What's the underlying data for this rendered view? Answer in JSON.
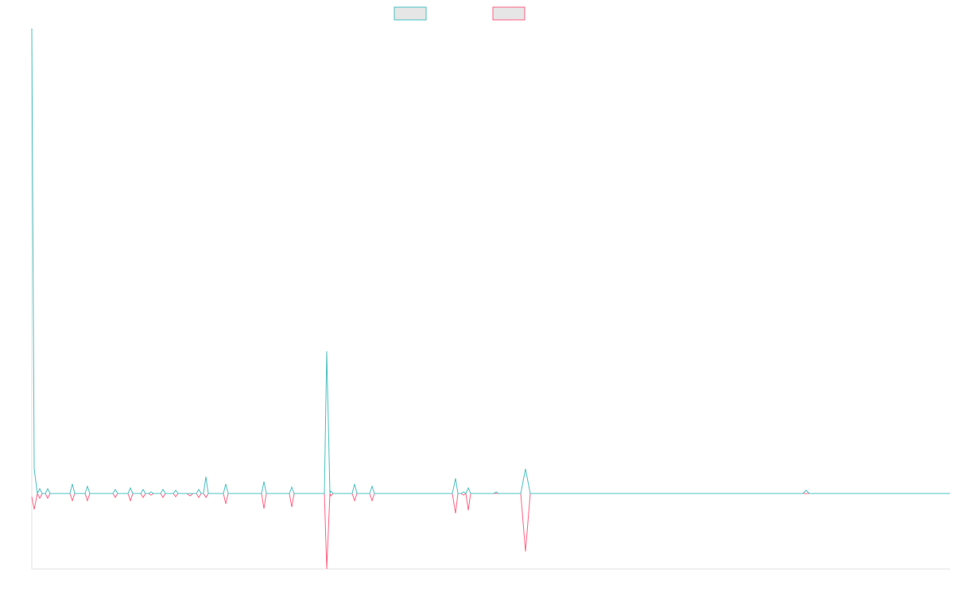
{
  "chart_data": {
    "type": "line",
    "x": [
      0,
      3,
      7,
      10,
      13,
      17,
      20,
      23,
      48,
      51,
      54,
      67,
      70,
      73,
      102,
      105,
      108,
      121,
      124,
      127,
      137,
      140,
      143,
      147,
      150,
      153,
      162,
      165,
      168,
      178,
      181,
      184,
      195,
      199,
      203,
      207,
      210,
      213,
      216,
      219,
      222,
      241,
      244,
      247,
      289,
      292,
      295,
      324,
      327,
      330,
      368,
      371,
      375,
      376,
      379,
      403,
      406,
      409,
      425,
      428,
      431,
      529,
      533,
      536,
      540,
      543,
      546,
      549,
      552,
      581,
      584,
      587,
      615,
      621,
      627,
      970,
      974,
      978,
      1155
    ],
    "xlim": [
      0,
      1155
    ],
    "ylim": [
      -95,
      586
    ],
    "series": [
      {
        "color": "#4bc0c0",
        "values": [
          585,
          31,
          0,
          6,
          0,
          0,
          6,
          0,
          0,
          12,
          0,
          0,
          9,
          0,
          0,
          5,
          0,
          0,
          7,
          0,
          0,
          5,
          0,
          0,
          2,
          0,
          0,
          5,
          0,
          0,
          4,
          0,
          0,
          0,
          0,
          0,
          5,
          0,
          0,
          21,
          0,
          0,
          12,
          0,
          0,
          15,
          0,
          0,
          8,
          0,
          0,
          179,
          0,
          3,
          0,
          0,
          12,
          0,
          0,
          9,
          0,
          0,
          19,
          0,
          0,
          2,
          0,
          7,
          0,
          0,
          2,
          0,
          0,
          31,
          0,
          0,
          4,
          0,
          0
        ]
      },
      {
        "color": "#ff6384",
        "values": [
          -4,
          -20,
          0,
          -6,
          0,
          0,
          -6,
          0,
          0,
          -9,
          0,
          0,
          -9,
          0,
          0,
          -5,
          0,
          0,
          -9,
          0,
          0,
          -5,
          0,
          0,
          -2,
          0,
          0,
          -5,
          0,
          0,
          -4,
          0,
          0,
          -3,
          0,
          0,
          -5,
          0,
          0,
          -5,
          0,
          0,
          -13,
          0,
          0,
          -19,
          0,
          0,
          -17,
          0,
          0,
          -95,
          0,
          -3,
          0,
          0,
          -9,
          0,
          0,
          -9,
          0,
          0,
          -25,
          0,
          0,
          -2,
          0,
          -21,
          0,
          0,
          0,
          0,
          0,
          -73,
          0,
          0,
          0,
          0,
          0
        ]
      }
    ]
  }
}
